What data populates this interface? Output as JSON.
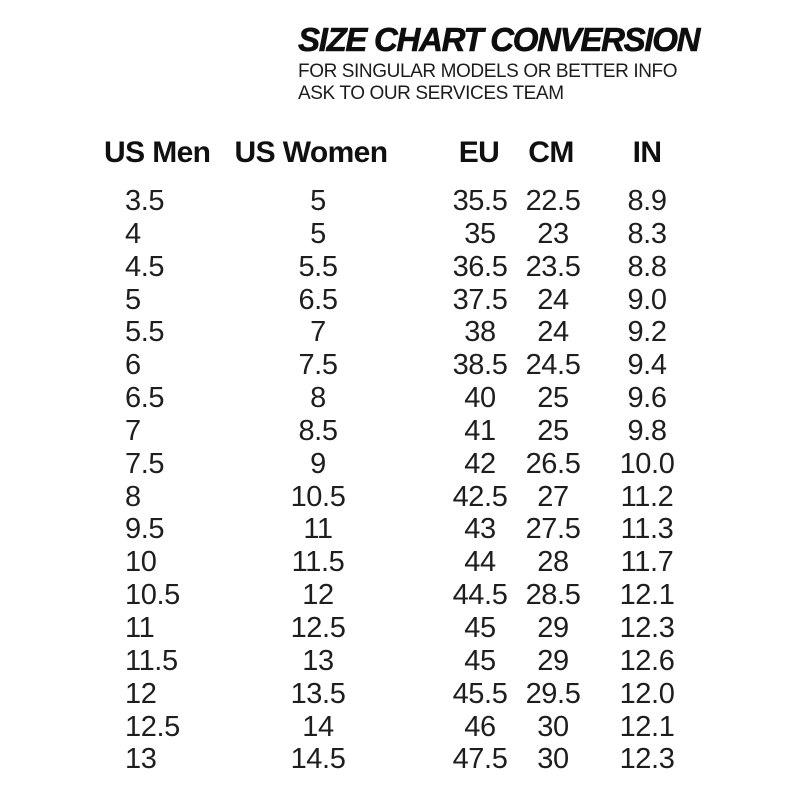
{
  "header": {
    "title": "SIZE CHART CONVERSION",
    "subtitle_line1": "FOR SINGULAR MODELS OR BETTER INFO",
    "subtitle_line2": "ASK TO OUR SERVICES TEAM"
  },
  "chart_data": {
    "type": "table",
    "title": "SIZE CHART CONVERSION",
    "columns": [
      "US Men",
      "US Women",
      "EU",
      "CM",
      "IN"
    ],
    "rows": [
      [
        "3.5",
        "5",
        "35.5",
        "22.5",
        "8.9"
      ],
      [
        "4",
        "5",
        "35",
        "23",
        "8.3"
      ],
      [
        "4.5",
        "5.5",
        "36.5",
        "23.5",
        "8.8"
      ],
      [
        "5",
        "6.5",
        "37.5",
        "24",
        "9.0"
      ],
      [
        "5.5",
        "7",
        "38",
        "24",
        "9.2"
      ],
      [
        "6",
        "7.5",
        "38.5",
        "24.5",
        "9.4"
      ],
      [
        "6.5",
        "8",
        "40",
        "25",
        "9.6"
      ],
      [
        "7",
        "8.5",
        "41",
        "25",
        "9.8"
      ],
      [
        "7.5",
        "9",
        "42",
        "26.5",
        "10.0"
      ],
      [
        "8",
        "10.5",
        "42.5",
        "27",
        "11.2"
      ],
      [
        "9.5",
        "11",
        "43",
        "27.5",
        "11.3"
      ],
      [
        "10",
        "11.5",
        "44",
        "28",
        "11.7"
      ],
      [
        "10.5",
        "12",
        "44.5",
        "28.5",
        "12.1"
      ],
      [
        "11",
        "12.5",
        "45",
        "29",
        "12.3"
      ],
      [
        "11.5",
        "13",
        "45",
        "29",
        "12.6"
      ],
      [
        "12",
        "13.5",
        "45.5",
        "29.5",
        "12.0"
      ],
      [
        "12.5",
        "14",
        "46",
        "30",
        "12.1"
      ],
      [
        "13",
        "14.5",
        "47.5",
        "30",
        "12.3"
      ]
    ]
  },
  "colors": {
    "text": "#161616",
    "background": "#ffffff"
  }
}
